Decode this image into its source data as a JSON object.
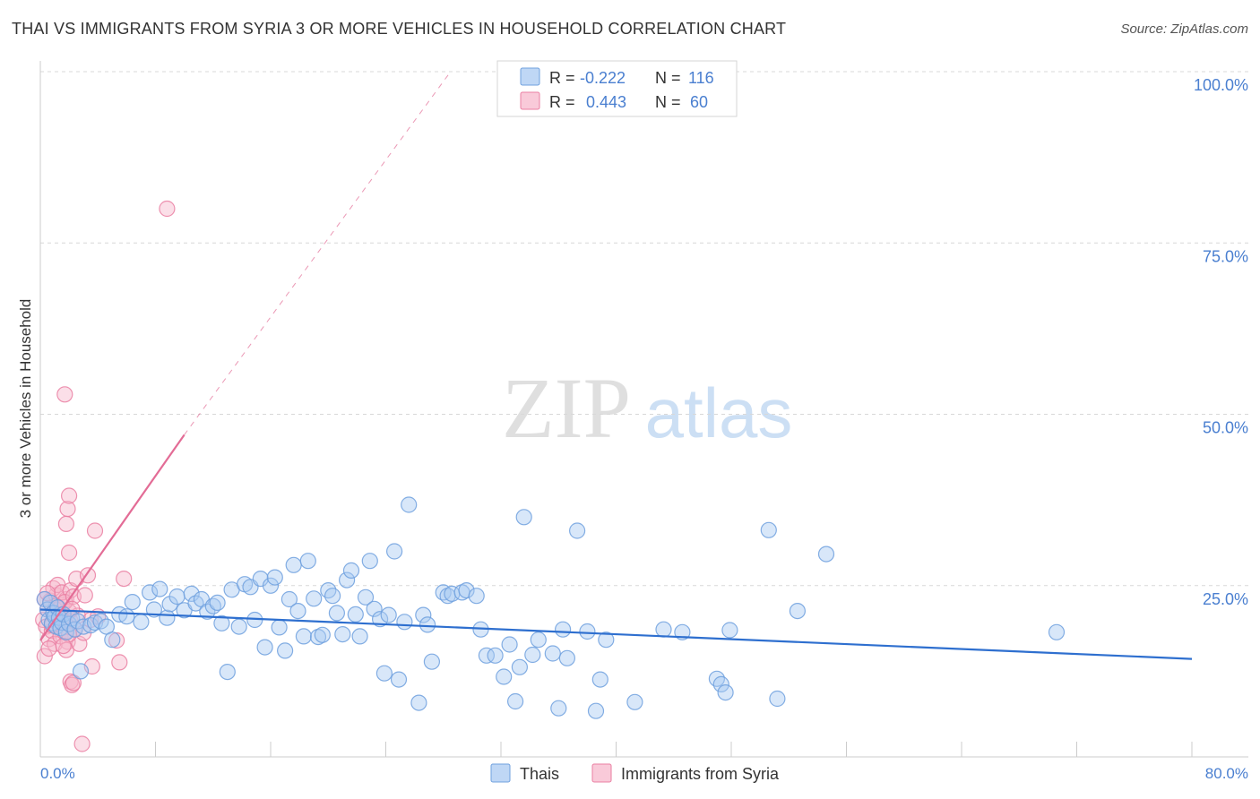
{
  "header": {
    "title": "THAI VS IMMIGRANTS FROM SYRIA 3 OR MORE VEHICLES IN HOUSEHOLD CORRELATION CHART",
    "source": "Source: ZipAtlas.com"
  },
  "watermark": {
    "zip": "ZIP",
    "atlas": "atlas"
  },
  "legend_box": {
    "rows": [
      {
        "r_label": "R =",
        "r_value": "-0.222",
        "n_label": "N =",
        "n_value": "116",
        "color": "#8fb8ec"
      },
      {
        "r_label": "R =",
        "r_value": "0.443",
        "n_label": "N =",
        "n_value": "60",
        "color": "#f4a3be"
      }
    ]
  },
  "colors": {
    "thai_fill": "#a9c9f2",
    "thai_stroke": "#6fa0de",
    "thai_line": "#2e6fcf",
    "syria_fill": "#f7b8cc",
    "syria_stroke": "#ea7fa2",
    "syria_line": "#e36c96",
    "axis_text": "#4a7fd0",
    "grid": "#d8d8d8"
  },
  "chart_data": {
    "type": "scatter",
    "title": "THAI VS IMMIGRANTS FROM SYRIA 3 OR MORE VEHICLES IN HOUSEHOLD CORRELATION CHART",
    "xlabel": "",
    "ylabel": "3 or more Vehicles in Household",
    "xlim": [
      0,
      80
    ],
    "ylim": [
      0,
      100
    ],
    "x_tick_labels": [
      "0.0%",
      "80.0%"
    ],
    "y_ticks": [
      25,
      50,
      75,
      100
    ],
    "y_tick_labels": [
      "25.0%",
      "50.0%",
      "75.0%",
      "100.0%"
    ],
    "grid": true,
    "legend_position": "bottom-center",
    "series": [
      {
        "name": "Thais",
        "r": -0.222,
        "n": 116,
        "trend": {
          "x": [
            0,
            80
          ],
          "y": [
            21.5,
            14.3
          ]
        },
        "points": [
          [
            0.3,
            23.0
          ],
          [
            0.5,
            21.5
          ],
          [
            0.6,
            20.0
          ],
          [
            0.7,
            22.5
          ],
          [
            0.8,
            19.5
          ],
          [
            0.9,
            21.0
          ],
          [
            1.0,
            20.5
          ],
          [
            1.1,
            19.0
          ],
          [
            1.2,
            21.8
          ],
          [
            1.3,
            20.3
          ],
          [
            1.4,
            18.8
          ],
          [
            1.5,
            19.6
          ],
          [
            1.6,
            20.8
          ],
          [
            1.8,
            18.2
          ],
          [
            2.0,
            19.4
          ],
          [
            2.2,
            20.2
          ],
          [
            2.4,
            18.6
          ],
          [
            2.6,
            19.8
          ],
          [
            2.8,
            12.5
          ],
          [
            3.0,
            19.0
          ],
          [
            3.5,
            19.2
          ],
          [
            3.8,
            19.6
          ],
          [
            4.2,
            19.8
          ],
          [
            4.6,
            19.0
          ],
          [
            5.0,
            17.1
          ],
          [
            5.5,
            20.8
          ],
          [
            6.0,
            20.5
          ],
          [
            6.4,
            22.6
          ],
          [
            7.0,
            19.7
          ],
          [
            7.6,
            24.0
          ],
          [
            7.9,
            21.5
          ],
          [
            8.3,
            24.5
          ],
          [
            8.8,
            20.3
          ],
          [
            9.0,
            22.3
          ],
          [
            9.5,
            23.4
          ],
          [
            10.0,
            21.4
          ],
          [
            10.5,
            23.8
          ],
          [
            10.8,
            22.4
          ],
          [
            11.2,
            23.0
          ],
          [
            11.6,
            21.2
          ],
          [
            12.0,
            22.0
          ],
          [
            12.3,
            22.5
          ],
          [
            12.6,
            19.5
          ],
          [
            13.0,
            12.4
          ],
          [
            13.3,
            24.4
          ],
          [
            13.8,
            19.0
          ],
          [
            14.2,
            25.2
          ],
          [
            14.6,
            24.8
          ],
          [
            14.9,
            20.0
          ],
          [
            15.3,
            26.0
          ],
          [
            15.6,
            16.0
          ],
          [
            16.0,
            25.0
          ],
          [
            16.3,
            26.2
          ],
          [
            16.6,
            18.9
          ],
          [
            17.0,
            15.5
          ],
          [
            17.3,
            23.0
          ],
          [
            17.6,
            28.0
          ],
          [
            17.9,
            21.3
          ],
          [
            18.3,
            17.6
          ],
          [
            18.6,
            28.6
          ],
          [
            19.0,
            23.1
          ],
          [
            19.3,
            17.5
          ],
          [
            19.6,
            17.8
          ],
          [
            20.0,
            24.3
          ],
          [
            20.3,
            23.5
          ],
          [
            20.6,
            21.0
          ],
          [
            21.0,
            17.9
          ],
          [
            21.3,
            25.8
          ],
          [
            21.6,
            27.2
          ],
          [
            21.9,
            20.8
          ],
          [
            22.2,
            17.6
          ],
          [
            22.6,
            23.3
          ],
          [
            22.9,
            28.6
          ],
          [
            23.2,
            21.6
          ],
          [
            23.6,
            20.1
          ],
          [
            23.9,
            12.2
          ],
          [
            24.2,
            20.7
          ],
          [
            24.6,
            30.0
          ],
          [
            24.9,
            11.3
          ],
          [
            25.3,
            19.7
          ],
          [
            25.6,
            36.8
          ],
          [
            26.3,
            7.9
          ],
          [
            26.6,
            20.7
          ],
          [
            26.9,
            19.3
          ],
          [
            27.2,
            13.9
          ],
          [
            28.0,
            24.0
          ],
          [
            28.3,
            23.5
          ],
          [
            28.6,
            23.8
          ],
          [
            29.3,
            24.0
          ],
          [
            29.6,
            24.3
          ],
          [
            30.3,
            23.5
          ],
          [
            30.6,
            18.6
          ],
          [
            31.0,
            14.8
          ],
          [
            31.6,
            14.8
          ],
          [
            32.2,
            11.7
          ],
          [
            32.6,
            16.4
          ],
          [
            33.0,
            8.1
          ],
          [
            33.3,
            13.1
          ],
          [
            33.6,
            35.0
          ],
          [
            34.2,
            14.9
          ],
          [
            34.6,
            17.1
          ],
          [
            35.6,
            15.1
          ],
          [
            36.0,
            7.1
          ],
          [
            36.3,
            18.6
          ],
          [
            36.6,
            14.4
          ],
          [
            37.3,
            33.0
          ],
          [
            38.0,
            18.3
          ],
          [
            38.6,
            6.7
          ],
          [
            38.9,
            11.3
          ],
          [
            39.3,
            17.1
          ],
          [
            41.3,
            8.0
          ],
          [
            43.3,
            18.6
          ],
          [
            44.6,
            18.2
          ],
          [
            47.0,
            11.4
          ],
          [
            47.3,
            10.6
          ],
          [
            47.6,
            9.4
          ],
          [
            47.9,
            18.5
          ],
          [
            50.6,
            33.1
          ],
          [
            51.2,
            8.5
          ],
          [
            52.6,
            21.3
          ],
          [
            54.6,
            29.6
          ],
          [
            70.6,
            18.2
          ]
        ]
      },
      {
        "name": "Immigrants from Syria",
        "r": 0.443,
        "n": 60,
        "trend": {
          "x": [
            0,
            10
          ],
          "y": [
            17.0,
            47.0
          ]
        },
        "trend_extension": {
          "x": [
            10,
            28.5
          ],
          "y": [
            47.0,
            100.0
          ]
        },
        "points": [
          [
            0.2,
            20.0
          ],
          [
            0.3,
            23.0
          ],
          [
            0.4,
            19.0
          ],
          [
            0.5,
            21.5
          ],
          [
            0.6,
            17.2
          ],
          [
            0.7,
            22.8
          ],
          [
            0.8,
            18.4
          ],
          [
            0.9,
            20.9
          ],
          [
            1.0,
            16.5
          ],
          [
            1.1,
            23.6
          ],
          [
            1.2,
            19.5
          ],
          [
            1.3,
            21.7
          ],
          [
            1.4,
            17.6
          ],
          [
            1.5,
            22.2
          ],
          [
            1.6,
            20.4
          ],
          [
            1.7,
            18.2
          ],
          [
            1.8,
            23.0
          ],
          [
            1.9,
            16.8
          ],
          [
            2.0,
            21.2
          ],
          [
            2.1,
            19.8
          ],
          [
            0.3,
            14.7
          ],
          [
            0.6,
            15.8
          ],
          [
            0.9,
            24.6
          ],
          [
            1.2,
            25.1
          ],
          [
            1.5,
            24.0
          ],
          [
            1.8,
            15.6
          ],
          [
            2.1,
            24.3
          ],
          [
            2.4,
            18.7
          ],
          [
            2.7,
            16.5
          ],
          [
            3.0,
            18.1
          ],
          [
            1.4,
            20.8
          ],
          [
            1.7,
            22.6
          ],
          [
            2.0,
            17.9
          ],
          [
            2.3,
            23.4
          ],
          [
            2.6,
            20.6
          ],
          [
            0.8,
            19.2
          ],
          [
            1.1,
            22.0
          ],
          [
            1.6,
            16.2
          ],
          [
            2.2,
            21.6
          ],
          [
            0.5,
            23.9
          ],
          [
            1.7,
            52.9
          ],
          [
            1.8,
            34.0
          ],
          [
            1.9,
            36.2
          ],
          [
            2.0,
            38.1
          ],
          [
            2.0,
            29.8
          ],
          [
            2.1,
            11.0
          ],
          [
            2.2,
            10.5
          ],
          [
            2.3,
            10.8
          ],
          [
            2.5,
            26.0
          ],
          [
            2.9,
            1.9
          ],
          [
            3.1,
            23.6
          ],
          [
            3.3,
            26.5
          ],
          [
            3.5,
            20.0
          ],
          [
            3.6,
            13.2
          ],
          [
            3.8,
            33.0
          ],
          [
            5.3,
            17.0
          ],
          [
            5.5,
            13.8
          ],
          [
            5.8,
            26.0
          ],
          [
            8.8,
            80.0
          ],
          [
            4.0,
            20.5
          ]
        ]
      }
    ]
  }
}
